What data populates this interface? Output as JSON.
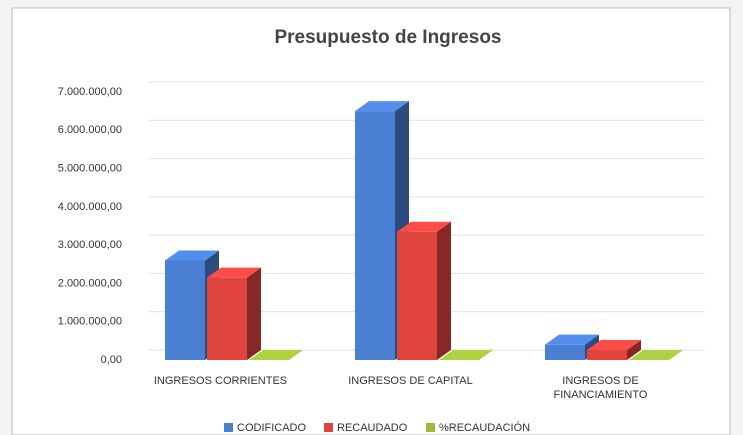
{
  "chart_data": {
    "type": "bar3d",
    "title": "Presupuesto de Ingresos",
    "categories": [
      "INGRESOS CORRIENTES",
      "INGRESOS DE CAPITAL",
      "INGRESOS DE FINANCIAMIENTO"
    ],
    "series": [
      {
        "name": "CODIFICADO",
        "color": "#4a7fd4",
        "values": [
          2600000,
          6500000,
          400000
        ]
      },
      {
        "name": "RECAUDADO",
        "color": "#e0443f",
        "values": [
          2150000,
          3350000,
          260000
        ]
      },
      {
        "name": "%RECAUDACIÓN",
        "color": "#9bbb3b",
        "values": [
          0,
          0,
          0
        ]
      }
    ],
    "ylim": [
      0,
      7000000
    ],
    "yticks": [
      {
        "value": 0,
        "label": "0,00"
      },
      {
        "value": 1000000,
        "label": "1.000.000,00"
      },
      {
        "value": 2000000,
        "label": "2.000.000,00"
      },
      {
        "value": 3000000,
        "label": "3.000.000,00"
      },
      {
        "value": 4000000,
        "label": "4.000.000,00"
      },
      {
        "value": 5000000,
        "label": "5.000.000,00"
      },
      {
        "value": 6000000,
        "label": "6.000.000,00"
      },
      {
        "value": 7000000,
        "label": "7.000.000,00"
      }
    ],
    "grid": true
  }
}
